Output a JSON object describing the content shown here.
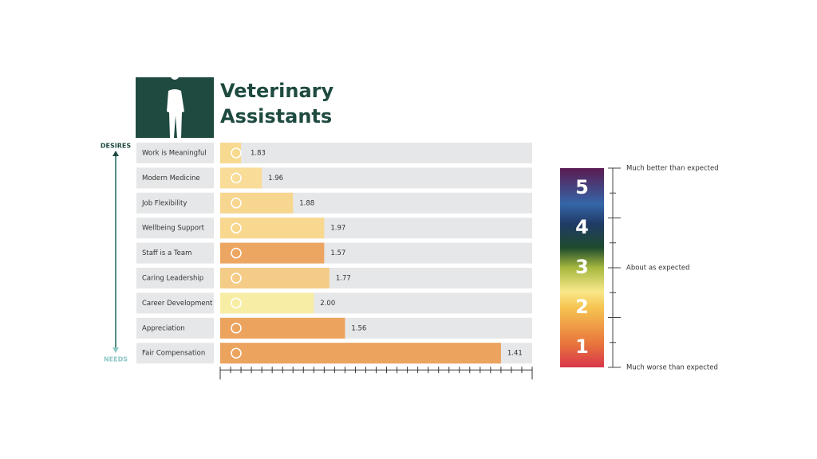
{
  "chart_data": {
    "type": "bar",
    "title": "Veterinary Assistants",
    "top_label": "DESIRES",
    "bottom_label": "NEEDS",
    "categories": [
      "Work is Meaningful",
      "Modern Medicine",
      "Job Flexibility",
      "Wellbeing Support",
      "Staff is a Team",
      "Caring Leadership",
      "Career Development",
      "Appreciation",
      "Fair Compensation"
    ],
    "values": [
      2,
      4,
      7,
      10,
      10,
      10.5,
      9,
      12,
      27
    ],
    "scores": [
      1.83,
      1.96,
      1.88,
      1.97,
      1.57,
      1.77,
      2,
      1.56,
      1.41
    ],
    "score_labels": [
      "1.83",
      "1.96",
      "1.88",
      "1.97",
      "1.57",
      "1.77",
      "2.00",
      "1.56",
      "1.41"
    ],
    "colors": [
      "#f7d98f",
      "#f8dc97",
      "#f7d68f",
      "#f8d78f",
      "#eda562",
      "#f5cc87",
      "#f8eda4",
      "#eba35e",
      "#eba35e"
    ],
    "xlim": [
      0,
      30
    ],
    "xticks": [
      0,
      1,
      2,
      3,
      4,
      5,
      6,
      7,
      8,
      9,
      10,
      11,
      12,
      13,
      14,
      15,
      16,
      17,
      18,
      19,
      20,
      21,
      22,
      23,
      24,
      25,
      26,
      27,
      28,
      29,
      30
    ],
    "color_scale": {
      "levels": [
        1,
        2,
        3,
        4,
        5
      ],
      "lim": [
        0.5,
        5.5
      ],
      "ticks": [
        0.5,
        1.125,
        1.75,
        2.375,
        3,
        3.625,
        4.25,
        4.875,
        5.5
      ],
      "annotations": [
        {
          "value": 0.5,
          "label": "Much worse than expected"
        },
        {
          "value": 3,
          "label": "About as expected"
        },
        {
          "value": 5.5,
          "label": "Much better than expected"
        }
      ]
    }
  }
}
